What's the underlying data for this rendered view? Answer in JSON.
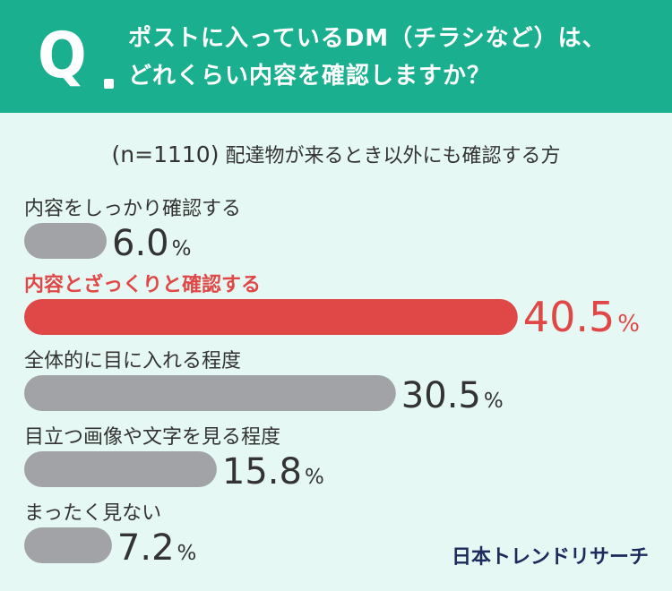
{
  "header": {
    "q_label": "Q",
    "question_line1": "ポストに入っているDM（チラシなど）は、",
    "question_line2": "どれくらい内容を確認しますか？"
  },
  "subtitle": {
    "sample": "(n=1110)",
    "text": "配達物が来るとき以外にも確認する方"
  },
  "chart_data": {
    "type": "bar",
    "orientation": "horizontal",
    "categories": [
      "内容をしっかり確認する",
      "内容とざっくりと確認する",
      "全体的に目に入れる程度",
      "目立つ画像や文字を見る程度",
      "まったく見ない"
    ],
    "values": [
      6.0,
      40.5,
      30.5,
      15.8,
      7.2
    ],
    "value_labels": [
      "6.0",
      "40.5",
      "30.5",
      "15.8",
      "7.2"
    ],
    "unit": "%",
    "highlight_index": 1,
    "colors": {
      "bar": "#a2a3a6",
      "highlight": "#e04848",
      "label": "#333333"
    }
  },
  "footer": {
    "brand": "日本トレンドリサーチ"
  }
}
